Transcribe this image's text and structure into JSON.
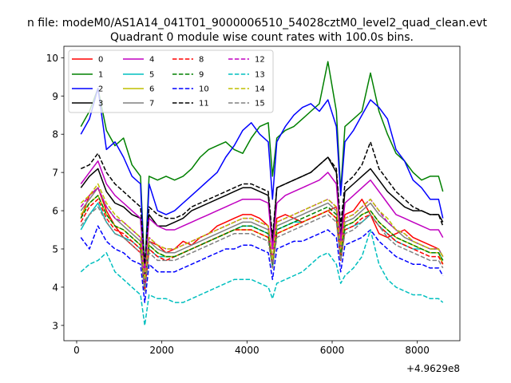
{
  "figure": {
    "suptitle": "n file: modeM0/AS1A14_041T01_9000006510_54028cztM0_level2_quad_clean.evt",
    "title": "Quadrant 0 module wise count rates with 100.0s bins.",
    "offset_label": "+4.9629e8"
  },
  "chart_data": {
    "type": "line",
    "title": "Quadrant 0 module wise count rates with 100.0s bins.",
    "xlabel": "",
    "ylabel": "",
    "x_offset": "+4.9629e8",
    "xlim": [
      -300,
      9000
    ],
    "ylim": [
      2.6,
      10.3
    ],
    "xticks": [
      0,
      2000,
      4000,
      6000,
      8000
    ],
    "yticks": [
      3,
      4,
      5,
      6,
      7,
      8,
      9,
      10
    ],
    "legend_loc": "upper-left",
    "legend_columns": 4,
    "x": [
      100,
      300,
      500,
      700,
      900,
      1100,
      1300,
      1500,
      1600,
      1700,
      1900,
      2100,
      2300,
      2500,
      2700,
      2900,
      3100,
      3300,
      3500,
      3700,
      3900,
      4100,
      4300,
      4500,
      4600,
      4700,
      4900,
      5100,
      5300,
      5500,
      5700,
      5900,
      6100,
      6200,
      6300,
      6500,
      6700,
      6900,
      7100,
      7300,
      7500,
      7700,
      7900,
      8100,
      8300,
      8500,
      8600
    ],
    "series": [
      {
        "name": "0",
        "color": "#ff0000",
        "dash": false,
        "values": [
          5.8,
          6.4,
          6.6,
          6.0,
          5.6,
          5.3,
          5.1,
          4.9,
          4.2,
          5.2,
          5.1,
          4.9,
          5.0,
          5.2,
          5.1,
          5.3,
          5.4,
          5.6,
          5.7,
          5.8,
          5.9,
          5.9,
          5.8,
          5.6,
          4.7,
          5.8,
          5.9,
          5.8,
          5.7,
          5.8,
          5.9,
          6.0,
          6.1,
          5.1,
          5.9,
          6.0,
          6.3,
          5.9,
          5.4,
          5.3,
          5.4,
          5.5,
          5.3,
          5.2,
          5.1,
          5.0,
          4.8
        ]
      },
      {
        "name": "1",
        "color": "#008000",
        "dash": false,
        "values": [
          8.2,
          8.6,
          9.2,
          8.1,
          7.7,
          7.9,
          7.2,
          6.9,
          4.4,
          6.9,
          6.8,
          6.9,
          6.8,
          6.9,
          7.1,
          7.4,
          7.6,
          7.7,
          7.8,
          7.6,
          7.5,
          7.9,
          8.2,
          8.3,
          6.9,
          7.9,
          8.1,
          8.2,
          8.4,
          8.6,
          8.8,
          9.9,
          8.6,
          6.5,
          8.2,
          8.4,
          8.6,
          9.6,
          8.6,
          8.0,
          7.5,
          7.3,
          7.0,
          6.8,
          6.9,
          6.9,
          6.5
        ]
      },
      {
        "name": "2",
        "color": "#0000ff",
        "dash": false,
        "values": [
          8.0,
          8.4,
          9.2,
          7.6,
          7.8,
          7.4,
          6.9,
          6.7,
          4.1,
          6.7,
          6.0,
          5.9,
          6.0,
          6.2,
          6.4,
          6.6,
          6.8,
          7.0,
          7.4,
          7.7,
          8.1,
          8.3,
          8.0,
          7.8,
          6.3,
          7.8,
          8.2,
          8.5,
          8.7,
          8.8,
          8.6,
          8.9,
          8.2,
          6.4,
          7.8,
          8.1,
          8.5,
          8.9,
          8.7,
          8.4,
          7.6,
          7.3,
          6.8,
          6.6,
          6.3,
          6.3,
          5.8
        ]
      },
      {
        "name": "3",
        "color": "#000000",
        "dash": false,
        "values": [
          6.6,
          6.9,
          7.1,
          6.5,
          6.2,
          6.1,
          5.9,
          5.8,
          4.3,
          5.9,
          5.6,
          5.6,
          5.7,
          5.8,
          6.0,
          6.1,
          6.2,
          6.3,
          6.4,
          6.5,
          6.6,
          6.6,
          6.5,
          6.4,
          5.1,
          6.6,
          6.7,
          6.8,
          6.9,
          7.0,
          7.2,
          7.4,
          7.0,
          5.3,
          6.5,
          6.7,
          6.9,
          7.1,
          6.8,
          6.5,
          6.3,
          6.1,
          6.0,
          6.0,
          5.9,
          5.9,
          5.7
        ]
      },
      {
        "name": "4",
        "color": "#c000c0",
        "dash": false,
        "values": [
          6.7,
          7.0,
          7.3,
          6.7,
          6.4,
          6.2,
          6.0,
          5.8,
          4.4,
          5.8,
          5.6,
          5.5,
          5.5,
          5.6,
          5.7,
          5.8,
          5.9,
          6.0,
          6.1,
          6.2,
          6.3,
          6.3,
          6.3,
          6.2,
          5.0,
          6.2,
          6.4,
          6.5,
          6.6,
          6.7,
          6.8,
          7.0,
          6.7,
          5.2,
          6.2,
          6.4,
          6.6,
          6.8,
          6.5,
          6.2,
          5.9,
          5.8,
          5.7,
          5.6,
          5.5,
          5.5,
          5.3
        ]
      },
      {
        "name": "5",
        "color": "#00bfbf",
        "dash": false,
        "values": [
          5.5,
          5.9,
          6.2,
          5.7,
          5.4,
          5.3,
          5.2,
          5.0,
          3.9,
          5.0,
          4.8,
          4.8,
          4.8,
          4.9,
          5.0,
          5.1,
          5.2,
          5.3,
          5.4,
          5.5,
          5.6,
          5.6,
          5.5,
          5.4,
          4.5,
          5.5,
          5.6,
          5.7,
          5.7,
          5.8,
          5.9,
          6.0,
          5.8,
          4.7,
          5.5,
          5.6,
          5.7,
          5.9,
          5.6,
          5.4,
          5.2,
          5.1,
          5.0,
          5.0,
          4.9,
          4.9,
          4.7
        ]
      },
      {
        "name": "6",
        "color": "#bfbf00",
        "dash": false,
        "values": [
          5.9,
          6.2,
          6.4,
          5.9,
          5.6,
          5.5,
          5.3,
          5.1,
          4.0,
          5.1,
          4.9,
          4.8,
          4.8,
          4.9,
          5.0,
          5.1,
          5.2,
          5.3,
          5.4,
          5.5,
          5.5,
          5.5,
          5.4,
          5.3,
          4.6,
          5.4,
          5.5,
          5.6,
          5.7,
          5.8,
          5.9,
          6.0,
          5.8,
          4.8,
          5.6,
          5.7,
          5.9,
          6.0,
          5.7,
          5.5,
          5.3,
          5.2,
          5.1,
          5.0,
          4.9,
          4.9,
          4.6
        ]
      },
      {
        "name": "7",
        "color": "#808080",
        "dash": false,
        "values": [
          6.0,
          6.3,
          6.6,
          6.1,
          5.8,
          5.6,
          5.4,
          5.2,
          4.1,
          5.2,
          5.0,
          4.9,
          4.9,
          5.0,
          5.1,
          5.2,
          5.3,
          5.4,
          5.5,
          5.6,
          5.7,
          5.7,
          5.6,
          5.5,
          4.6,
          5.6,
          5.7,
          5.8,
          5.9,
          6.0,
          6.1,
          6.2,
          6.0,
          4.9,
          5.7,
          5.8,
          6.0,
          6.2,
          5.9,
          5.7,
          5.5,
          5.3,
          5.2,
          5.1,
          5.0,
          5.0,
          4.8
        ]
      },
      {
        "name": "8",
        "color": "#ff0000",
        "dash": true,
        "values": [
          5.7,
          6.1,
          6.3,
          5.8,
          5.5,
          5.4,
          5.2,
          5.0,
          3.9,
          5.0,
          4.8,
          4.7,
          4.8,
          4.9,
          5.0,
          5.1,
          5.2,
          5.3,
          5.4,
          5.5,
          5.5,
          5.5,
          5.4,
          5.3,
          4.5,
          5.4,
          5.5,
          5.6,
          5.7,
          5.8,
          5.9,
          6.0,
          5.8,
          4.7,
          5.5,
          5.6,
          5.8,
          5.9,
          5.6,
          5.4,
          5.2,
          5.1,
          5.0,
          4.9,
          4.8,
          4.8,
          4.6
        ]
      },
      {
        "name": "9",
        "color": "#008000",
        "dash": true,
        "values": [
          5.8,
          6.2,
          6.4,
          5.9,
          5.6,
          5.5,
          5.3,
          5.1,
          4.0,
          5.1,
          4.9,
          4.8,
          4.8,
          4.9,
          5.0,
          5.1,
          5.2,
          5.3,
          5.4,
          5.5,
          5.6,
          5.6,
          5.5,
          5.4,
          4.6,
          5.5,
          5.6,
          5.7,
          5.8,
          5.9,
          6.0,
          6.1,
          5.9,
          4.8,
          5.6,
          5.7,
          5.9,
          6.0,
          5.7,
          5.5,
          5.3,
          5.2,
          5.1,
          5.0,
          4.9,
          4.9,
          4.7
        ]
      },
      {
        "name": "10",
        "color": "#0000ff",
        "dash": true,
        "values": [
          5.3,
          5.0,
          5.6,
          5.2,
          5.0,
          4.9,
          4.7,
          4.6,
          3.6,
          4.6,
          4.4,
          4.4,
          4.4,
          4.5,
          4.6,
          4.7,
          4.8,
          4.9,
          5.0,
          5.0,
          5.1,
          5.1,
          5.0,
          4.9,
          4.2,
          5.0,
          5.1,
          5.2,
          5.2,
          5.3,
          5.4,
          5.5,
          5.3,
          4.4,
          5.1,
          5.2,
          5.3,
          5.5,
          5.2,
          5.0,
          4.8,
          4.7,
          4.6,
          4.6,
          4.5,
          4.5,
          4.3
        ]
      },
      {
        "name": "11",
        "color": "#000000",
        "dash": true,
        "values": [
          7.1,
          7.2,
          7.5,
          7.0,
          6.7,
          6.5,
          6.3,
          6.1,
          4.6,
          6.1,
          5.9,
          5.8,
          5.8,
          5.9,
          6.1,
          6.2,
          6.3,
          6.4,
          6.5,
          6.6,
          6.7,
          6.7,
          6.6,
          6.5,
          5.3,
          6.6,
          6.7,
          6.8,
          6.9,
          7.0,
          7.2,
          7.4,
          7.1,
          5.6,
          6.7,
          6.9,
          7.2,
          7.8,
          7.1,
          6.8,
          6.5,
          6.3,
          6.1,
          6.0,
          5.9,
          5.9,
          5.6
        ]
      },
      {
        "name": "12",
        "color": "#c000c0",
        "dash": true,
        "values": [
          6.1,
          6.4,
          6.6,
          6.1,
          5.8,
          5.7,
          5.5,
          5.3,
          4.1,
          5.3,
          5.1,
          5.0,
          5.0,
          5.1,
          5.2,
          5.3,
          5.4,
          5.5,
          5.6,
          5.7,
          5.8,
          5.8,
          5.7,
          5.6,
          4.7,
          5.7,
          5.8,
          5.9,
          6.0,
          6.1,
          6.2,
          6.3,
          6.1,
          5.0,
          5.8,
          5.9,
          6.1,
          6.3,
          6.0,
          5.7,
          5.5,
          5.4,
          5.2,
          5.1,
          5.0,
          5.0,
          4.8
        ]
      },
      {
        "name": "13",
        "color": "#00bfbf",
        "dash": true,
        "values": [
          4.4,
          4.6,
          4.7,
          4.9,
          4.4,
          4.2,
          4.0,
          3.8,
          3.0,
          3.8,
          3.7,
          3.7,
          3.6,
          3.6,
          3.7,
          3.8,
          3.9,
          4.0,
          4.1,
          4.2,
          4.2,
          4.2,
          4.1,
          4.0,
          3.7,
          4.1,
          4.2,
          4.3,
          4.4,
          4.6,
          4.8,
          4.9,
          4.6,
          4.1,
          4.3,
          4.5,
          4.8,
          5.5,
          4.6,
          4.2,
          4.0,
          3.9,
          3.8,
          3.8,
          3.7,
          3.7,
          3.6
        ]
      },
      {
        "name": "14",
        "color": "#bfbf00",
        "dash": true,
        "values": [
          6.2,
          6.4,
          6.7,
          6.2,
          5.9,
          5.7,
          5.5,
          5.3,
          4.2,
          5.3,
          5.1,
          5.0,
          5.0,
          5.1,
          5.2,
          5.3,
          5.4,
          5.5,
          5.6,
          5.7,
          5.8,
          5.8,
          5.7,
          5.6,
          4.7,
          5.7,
          5.8,
          5.9,
          6.0,
          6.1,
          6.2,
          6.3,
          6.1,
          5.0,
          5.8,
          5.9,
          6.1,
          6.3,
          6.0,
          5.8,
          5.5,
          5.4,
          5.2,
          5.1,
          5.0,
          5.0,
          4.8
        ]
      },
      {
        "name": "15",
        "color": "#808080",
        "dash": true,
        "values": [
          5.6,
          5.9,
          6.1,
          5.7,
          5.4,
          5.3,
          5.1,
          4.9,
          3.9,
          4.9,
          4.7,
          4.7,
          4.7,
          4.8,
          4.9,
          5.0,
          5.1,
          5.2,
          5.3,
          5.4,
          5.4,
          5.4,
          5.3,
          5.2,
          4.5,
          5.3,
          5.4,
          5.5,
          5.6,
          5.7,
          5.8,
          5.9,
          5.7,
          4.7,
          5.4,
          5.5,
          5.7,
          5.9,
          5.6,
          5.3,
          5.1,
          5.0,
          4.9,
          4.8,
          4.7,
          4.7,
          4.5
        ]
      }
    ]
  }
}
